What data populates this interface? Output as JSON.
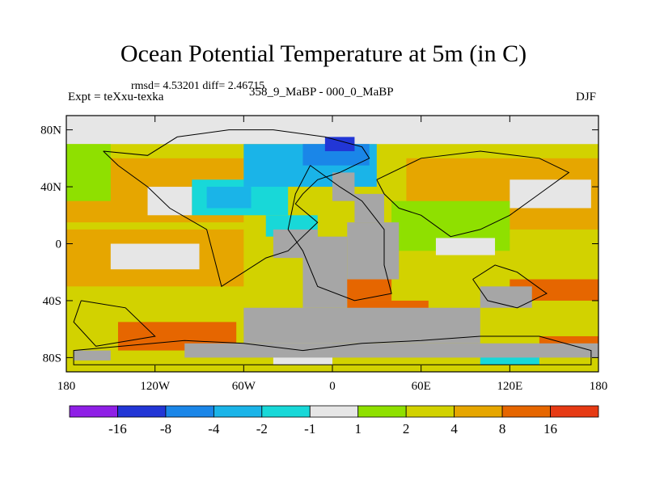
{
  "title": "Ocean Potential Temperature at 5m (in C)",
  "stats": "rmsd= 4.53201 diff= 2.46715",
  "left_label": "Expt = teXxu-texka",
  "subtitle": "358_9_MaBP - 000_0_MaBP",
  "season": "DJF",
  "chart_data": {
    "type": "heatmap",
    "projection": "cylindrical-equidistant",
    "x_range": [
      -180,
      180
    ],
    "y_range": [
      -90,
      90
    ],
    "x_ticks": [
      {
        "value": -180,
        "label": "180"
      },
      {
        "value": -120,
        "label": "120W"
      },
      {
        "value": -60,
        "label": "60W"
      },
      {
        "value": 0,
        "label": "0"
      },
      {
        "value": 60,
        "label": "60E"
      },
      {
        "value": 120,
        "label": "120E"
      },
      {
        "value": 180,
        "label": "180"
      }
    ],
    "y_ticks": [
      {
        "value": 80,
        "label": "80N"
      },
      {
        "value": 40,
        "label": "40N"
      },
      {
        "value": 0,
        "label": "0"
      },
      {
        "value": -40,
        "label": "40S"
      },
      {
        "value": -80,
        "label": "80S"
      }
    ],
    "colorbar": {
      "colors": [
        "#8f1fe6",
        "#2236d6",
        "#1a86e8",
        "#1ab4e8",
        "#18d8d8",
        "#e6e6e6",
        "#8fe000",
        "#d2d200",
        "#e6a600",
        "#e66600",
        "#e63a14"
      ],
      "labels": [
        "-16",
        "-8",
        "-4",
        "-2",
        "-1",
        "1",
        "2",
        "4",
        "8",
        "16"
      ]
    },
    "missing_color": "#a6a6a6",
    "fields": [
      {
        "value": 3,
        "lon": [
          -180,
          180
        ],
        "lat": [
          -90,
          90
        ]
      },
      {
        "value": 0,
        "lon": [
          -180,
          180
        ],
        "lat": [
          70,
          90
        ]
      },
      {
        "value": 3,
        "lon": [
          -110,
          180
        ],
        "lat": [
          -30,
          10
        ]
      },
      {
        "value": 6,
        "lon": [
          -180,
          -60
        ],
        "lat": [
          -30,
          10
        ]
      },
      {
        "value": 6,
        "lon": [
          -180,
          -60
        ],
        "lat": [
          15,
          60
        ]
      },
      {
        "value": 6,
        "lon": [
          50,
          180
        ],
        "lat": [
          10,
          60
        ]
      },
      {
        "value": 1.5,
        "lon": [
          -180,
          -150
        ],
        "lat": [
          30,
          70
        ]
      },
      {
        "value": 0,
        "lon": [
          -125,
          -95
        ],
        "lat": [
          20,
          40
        ]
      },
      {
        "value": 0,
        "lon": [
          120,
          175
        ],
        "lat": [
          25,
          45
        ]
      },
      {
        "value": 0,
        "lon": [
          -150,
          -90
        ],
        "lat": [
          -18,
          0
        ]
      },
      {
        "value": 1.5,
        "lon": [
          40,
          120
        ],
        "lat": [
          -5,
          30
        ]
      },
      {
        "value": 0,
        "lon": [
          70,
          110
        ],
        "lat": [
          -8,
          4
        ]
      },
      {
        "value": 10,
        "lon": [
          -145,
          -65
        ],
        "lat": [
          -75,
          -55
        ]
      },
      {
        "value": 10,
        "lon": [
          -2,
          40
        ],
        "lat": [
          -40,
          -25
        ]
      },
      {
        "value": 10,
        "lon": [
          10,
          65
        ],
        "lat": [
          -48,
          -40
        ]
      },
      {
        "value": 10,
        "lon": [
          120,
          180
        ],
        "lat": [
          -40,
          -25
        ]
      },
      {
        "value": 10,
        "lon": [
          140,
          180
        ],
        "lat": [
          -78,
          -65
        ]
      },
      {
        "value": -1.5,
        "lon": [
          -95,
          -30
        ],
        "lat": [
          20,
          45
        ]
      },
      {
        "value": -3,
        "lon": [
          -60,
          30
        ],
        "lat": [
          40,
          70
        ]
      },
      {
        "value": -3,
        "lon": [
          -85,
          -55
        ],
        "lat": [
          25,
          40
        ]
      },
      {
        "value": -6,
        "lon": [
          -20,
          25
        ],
        "lat": [
          55,
          70
        ]
      },
      {
        "value": -10,
        "lon": [
          -5,
          15
        ],
        "lat": [
          65,
          75
        ]
      },
      {
        "value": -1.5,
        "lon": [
          -45,
          -10
        ],
        "lat": [
          5,
          20
        ]
      },
      {
        "value": -1.5,
        "lon": [
          100,
          140
        ],
        "lat": [
          -85,
          -78
        ]
      },
      {
        "value": 0,
        "lon": [
          -40,
          0
        ],
        "lat": [
          -85,
          -70
        ]
      }
    ],
    "missing_regions": [
      {
        "lon": [
          -100,
          180
        ],
        "lat": [
          -80,
          -70
        ]
      },
      {
        "lon": [
          -60,
          100
        ],
        "lat": [
          -70,
          -45
        ]
      },
      {
        "lon": [
          -20,
          10
        ],
        "lat": [
          -45,
          5
        ]
      },
      {
        "lon": [
          10,
          45
        ],
        "lat": [
          -25,
          15
        ]
      },
      {
        "lon": [
          -40,
          -10
        ],
        "lat": [
          -10,
          10
        ]
      },
      {
        "lon": [
          0,
          15
        ],
        "lat": [
          30,
          50
        ]
      },
      {
        "lon": [
          15,
          35
        ],
        "lat": [
          15,
          35
        ]
      },
      {
        "lon": [
          100,
          135
        ],
        "lat": [
          -45,
          -30
        ]
      },
      {
        "lon": [
          -175,
          -150
        ],
        "lat": [
          -82,
          -75
        ]
      }
    ],
    "coastlines": [
      [
        [
          -155,
          65
        ],
        [
          -125,
          62
        ],
        [
          -105,
          75
        ],
        [
          -70,
          80
        ],
        [
          -40,
          80
        ],
        [
          -5,
          75
        ],
        [
          20,
          68
        ],
        [
          25,
          60
        ],
        [
          15,
          55
        ],
        [
          5,
          50
        ],
        [
          -10,
          45
        ],
        [
          -20,
          35
        ],
        [
          -25,
          28
        ],
        [
          -10,
          15
        ],
        [
          -20,
          5
        ],
        [
          -30,
          -5
        ],
        [
          -45,
          -10
        ],
        [
          -75,
          -30
        ],
        [
          -80,
          -10
        ],
        [
          -85,
          10
        ],
        [
          -110,
          25
        ],
        [
          -125,
          40
        ],
        [
          -145,
          55
        ],
        [
          -155,
          65
        ]
      ],
      [
        [
          -15,
          55
        ],
        [
          5,
          40
        ],
        [
          20,
          30
        ],
        [
          35,
          10
        ],
        [
          35,
          -15
        ],
        [
          40,
          -35
        ],
        [
          15,
          -40
        ],
        [
          -10,
          -30
        ],
        [
          -20,
          -5
        ],
        [
          -30,
          10
        ],
        [
          -25,
          35
        ],
        [
          -15,
          55
        ]
      ],
      [
        [
          30,
          45
        ],
        [
          60,
          60
        ],
        [
          100,
          65
        ],
        [
          140,
          60
        ],
        [
          160,
          50
        ],
        [
          140,
          35
        ],
        [
          120,
          20
        ],
        [
          100,
          10
        ],
        [
          80,
          5
        ],
        [
          60,
          20
        ],
        [
          45,
          25
        ],
        [
          35,
          35
        ],
        [
          30,
          45
        ]
      ],
      [
        [
          95,
          -25
        ],
        [
          110,
          -15
        ],
        [
          125,
          -20
        ],
        [
          145,
          -35
        ],
        [
          125,
          -45
        ],
        [
          105,
          -40
        ],
        [
          95,
          -25
        ]
      ],
      [
        [
          -170,
          -40
        ],
        [
          -140,
          -45
        ],
        [
          -120,
          -65
        ],
        [
          -160,
          -72
        ],
        [
          -175,
          -55
        ],
        [
          -170,
          -40
        ]
      ],
      [
        [
          -100,
          -68
        ],
        [
          -60,
          -70
        ],
        [
          -20,
          -75
        ],
        [
          20,
          -70
        ],
        [
          60,
          -68
        ],
        [
          100,
          -65
        ],
        [
          140,
          -65
        ],
        [
          175,
          -75
        ],
        [
          175,
          -85
        ],
        [
          -175,
          -85
        ],
        [
          -175,
          -75
        ],
        [
          -100,
          -68
        ]
      ]
    ]
  }
}
